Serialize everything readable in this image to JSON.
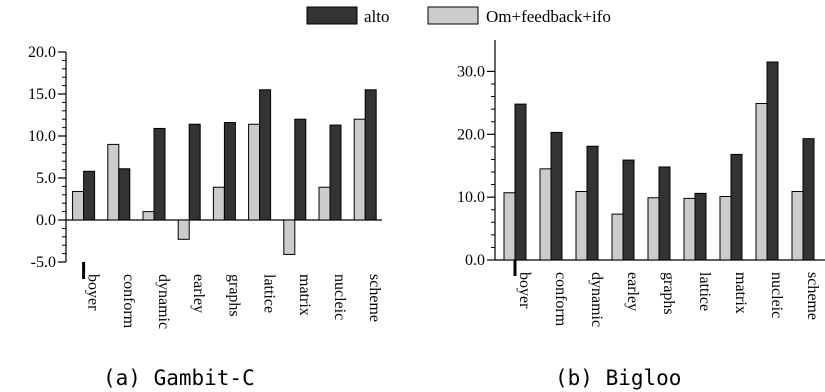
{
  "legend": {
    "entries": [
      {
        "name": "alto",
        "color": "#333333"
      },
      {
        "name": "Om+feedback+ifo",
        "color": "#cccccc"
      }
    ]
  },
  "chart_data": [
    {
      "type": "bar",
      "caption": "(a) Gambit-C",
      "categories": [
        "boyer",
        "conform",
        "dynamic",
        "earley",
        "graphs",
        "lattice",
        "matrix",
        "nucleic",
        "scheme"
      ],
      "series": [
        {
          "name": "Om+feedback+ifo",
          "values": [
            3.4,
            9.0,
            1.0,
            -2.3,
            3.9,
            11.4,
            -4.1,
            3.9,
            12.0
          ]
        },
        {
          "name": "alto",
          "values": [
            5.8,
            6.1,
            10.9,
            11.4,
            11.6,
            15.5,
            12.0,
            11.3,
            15.5
          ]
        }
      ],
      "ylim": [
        -5.0,
        20.0
      ],
      "yticks": [
        "-5.0",
        "0.0",
        "5.0",
        "10.0",
        "15.0",
        "20.0"
      ],
      "grid": false,
      "legend_position": "top"
    },
    {
      "type": "bar",
      "caption": "(b) Bigloo",
      "categories": [
        "boyer",
        "conform",
        "dynamic",
        "earley",
        "graphs",
        "lattice",
        "matrix",
        "nucleic",
        "scheme"
      ],
      "series": [
        {
          "name": "Om+feedback+ifo",
          "values": [
            10.7,
            14.5,
            10.9,
            7.3,
            9.9,
            9.8,
            10.1,
            24.9,
            10.9
          ]
        },
        {
          "name": "alto",
          "values": [
            24.8,
            20.3,
            18.1,
            15.9,
            14.8,
            10.6,
            16.8,
            31.5,
            19.3
          ]
        }
      ],
      "ylim": [
        0.0,
        35.0
      ],
      "yticks": [
        "0.0",
        "10.0",
        "20.0",
        "30.0"
      ],
      "grid": false,
      "legend_position": "top"
    }
  ]
}
